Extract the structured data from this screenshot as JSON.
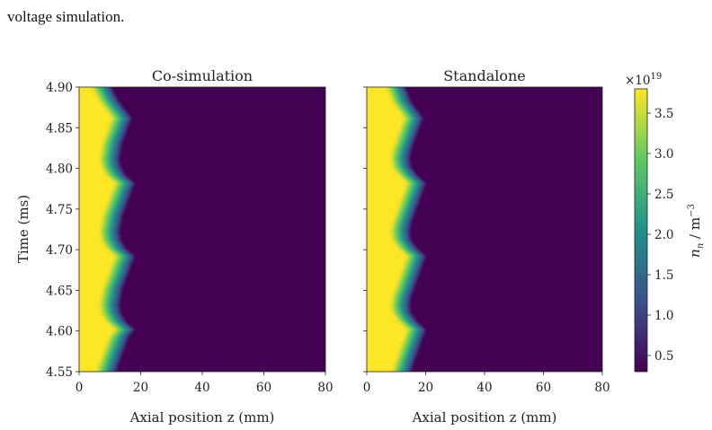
{
  "caption": "voltage simulation.",
  "colors": {
    "high": "#fde725",
    "mid_high": "#5ec962",
    "mid": "#21918c",
    "mid_low": "#3b528b",
    "low": "#440154",
    "background": "#ffffff"
  },
  "chart_data": [
    {
      "type": "heatmap",
      "title": "Co-simulation",
      "xlabel": "Axial position z (mm)",
      "ylabel": "Time (ms)",
      "xlim": [
        0,
        80
      ],
      "ylim": [
        4.55,
        4.9
      ],
      "x_ticks": [
        "0",
        "20",
        "40",
        "60",
        "80"
      ],
      "y_ticks": [
        "4.55",
        "4.60",
        "4.65",
        "4.70",
        "4.75",
        "4.80",
        "4.85",
        "4.90"
      ],
      "front_position_mm": {
        "t": [
          4.55,
          4.562,
          4.572,
          4.582,
          4.592,
          4.602,
          4.612,
          4.622,
          4.632,
          4.642,
          4.652,
          4.662,
          4.672,
          4.682,
          4.692,
          4.702,
          4.712,
          4.722,
          4.732,
          4.742,
          4.752,
          4.762,
          4.772,
          4.782,
          4.792,
          4.802,
          4.812,
          4.822,
          4.832,
          4.842,
          4.852,
          4.862,
          4.872,
          4.882,
          4.892,
          4.9
        ],
        "z": [
          9,
          10,
          11,
          12,
          13,
          15,
          12,
          10.5,
          10,
          10.5,
          11,
          12,
          13,
          14,
          15,
          12,
          10.5,
          10,
          10.5,
          11,
          12,
          13,
          14,
          15,
          12,
          10.5,
          10,
          10.5,
          11,
          12,
          13,
          14,
          12,
          10,
          8.5,
          7.5
        ]
      }
    },
    {
      "type": "heatmap",
      "title": "Standalone",
      "xlabel": "Axial position z (mm)",
      "xlim": [
        0,
        80
      ],
      "ylim": [
        4.55,
        4.9
      ],
      "x_ticks": [
        "0",
        "20",
        "40",
        "60",
        "80"
      ],
      "front_position_mm": {
        "t": [
          4.55,
          4.562,
          4.572,
          4.582,
          4.592,
          4.602,
          4.612,
          4.622,
          4.632,
          4.642,
          4.652,
          4.662,
          4.672,
          4.682,
          4.692,
          4.702,
          4.712,
          4.722,
          4.732,
          4.742,
          4.752,
          4.762,
          4.772,
          4.782,
          4.792,
          4.802,
          4.812,
          4.822,
          4.832,
          4.842,
          4.852,
          4.862,
          4.872,
          4.882,
          4.892,
          4.9
        ],
        "z": [
          12,
          13,
          14,
          15,
          16,
          17,
          14,
          12,
          11.5,
          12,
          13,
          14,
          15,
          16,
          17,
          14,
          12,
          11.5,
          12,
          13,
          14,
          15,
          16,
          17,
          14,
          12,
          11.5,
          12,
          13,
          14,
          15,
          16,
          14,
          12,
          11,
          10
        ]
      }
    }
  ],
  "colorbar": {
    "label": "n_n / m^-3",
    "exponent_base": "×10",
    "exponent_power": "19",
    "label_main": "n",
    "label_sub": "n",
    "label_unit": " / m",
    "label_unit_sup": "−3",
    "range": [
      0.3,
      3.8
    ],
    "ticks": [
      "0.5",
      "1.0",
      "1.5",
      "2.0",
      "2.5",
      "3.0",
      "3.5"
    ],
    "tick_values": [
      0.5,
      1.0,
      1.5,
      2.0,
      2.5,
      3.0,
      3.5
    ]
  }
}
